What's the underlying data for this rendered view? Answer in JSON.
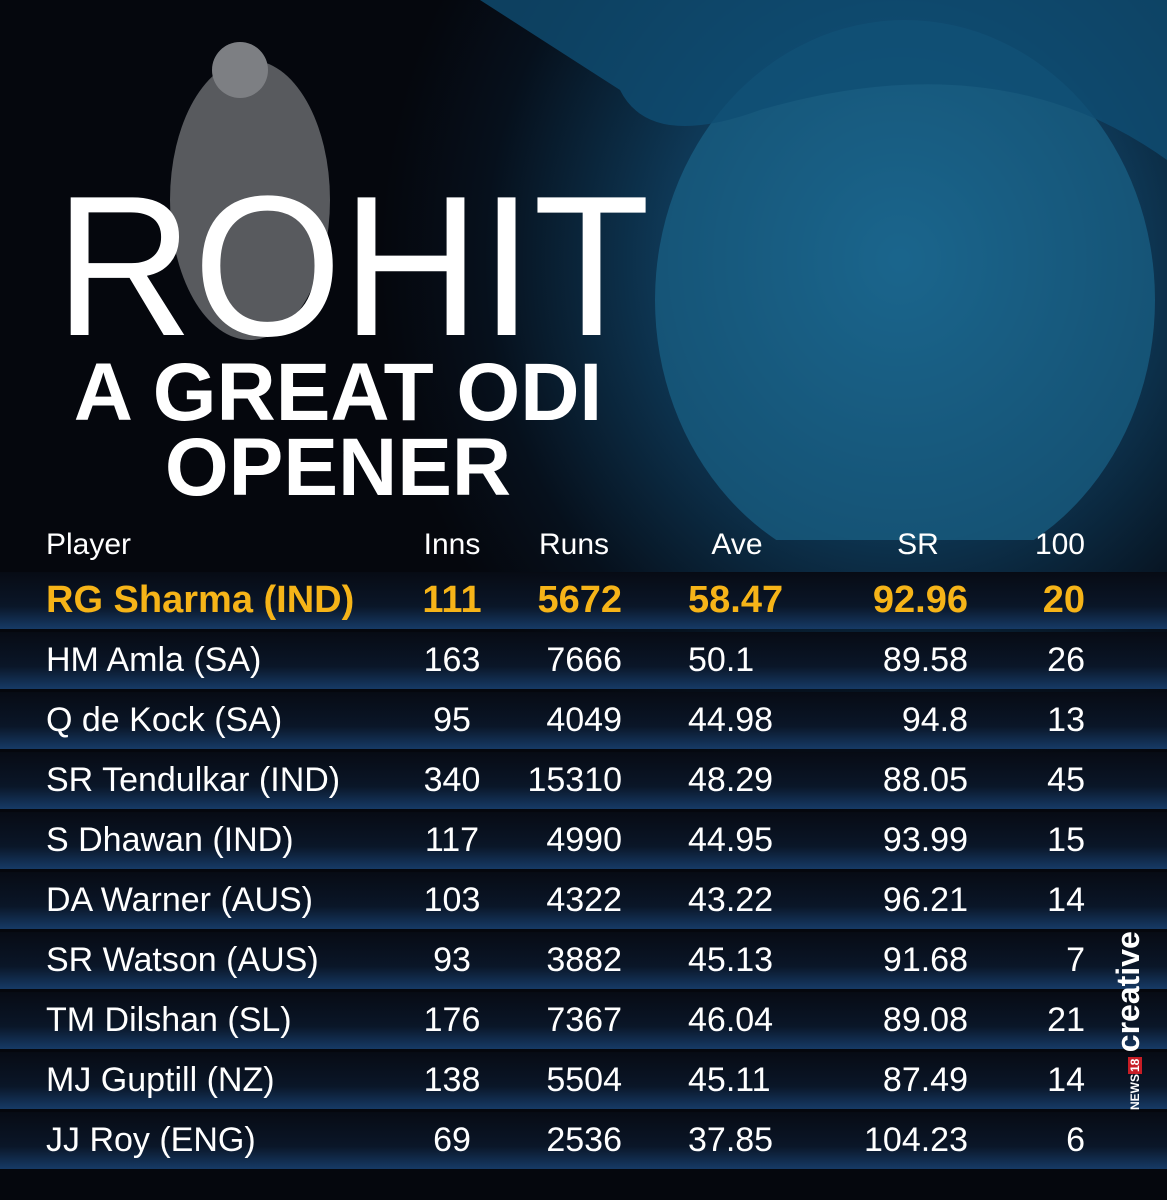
{
  "header": {
    "title": "ROHIT",
    "subtitle_lines": [
      "A GREAT ODI",
      "OPENER"
    ]
  },
  "table": {
    "columns": [
      "Player",
      "Inns",
      "Runs",
      "Ave",
      "SR",
      "100"
    ],
    "rows": [
      [
        "RG Sharma (IND)",
        "111",
        "5672",
        "58.47",
        "92.96",
        "20"
      ],
      [
        "HM Amla (SA)",
        "163",
        "7666",
        "50.1",
        "89.58",
        "26"
      ],
      [
        "Q de Kock (SA)",
        "95",
        "4049",
        "44.98",
        "94.8",
        "13"
      ],
      [
        "SR Tendulkar (IND)",
        "340",
        "15310",
        "48.29",
        "88.05",
        "45"
      ],
      [
        "S Dhawan (IND)",
        "117",
        "4990",
        "44.95",
        "93.99",
        "15"
      ],
      [
        "DA Warner (AUS)",
        "103",
        "4322",
        "43.22",
        "96.21",
        "14"
      ],
      [
        "SR Watson (AUS)",
        "93",
        "3882",
        "45.13",
        "91.68",
        "7"
      ],
      [
        "TM Dilshan (SL)",
        "176",
        "7367",
        "46.04",
        "89.08",
        "21"
      ],
      [
        "MJ Guptill (NZ)",
        "138",
        "5504",
        "45.11",
        "87.49",
        "14"
      ],
      [
        "JJ Roy (ENG)",
        "69",
        "2536",
        "37.85",
        "104.23",
        "6"
      ]
    ]
  },
  "watermark": {
    "news": "NEWS",
    "number": "18",
    "text": "creative"
  }
}
